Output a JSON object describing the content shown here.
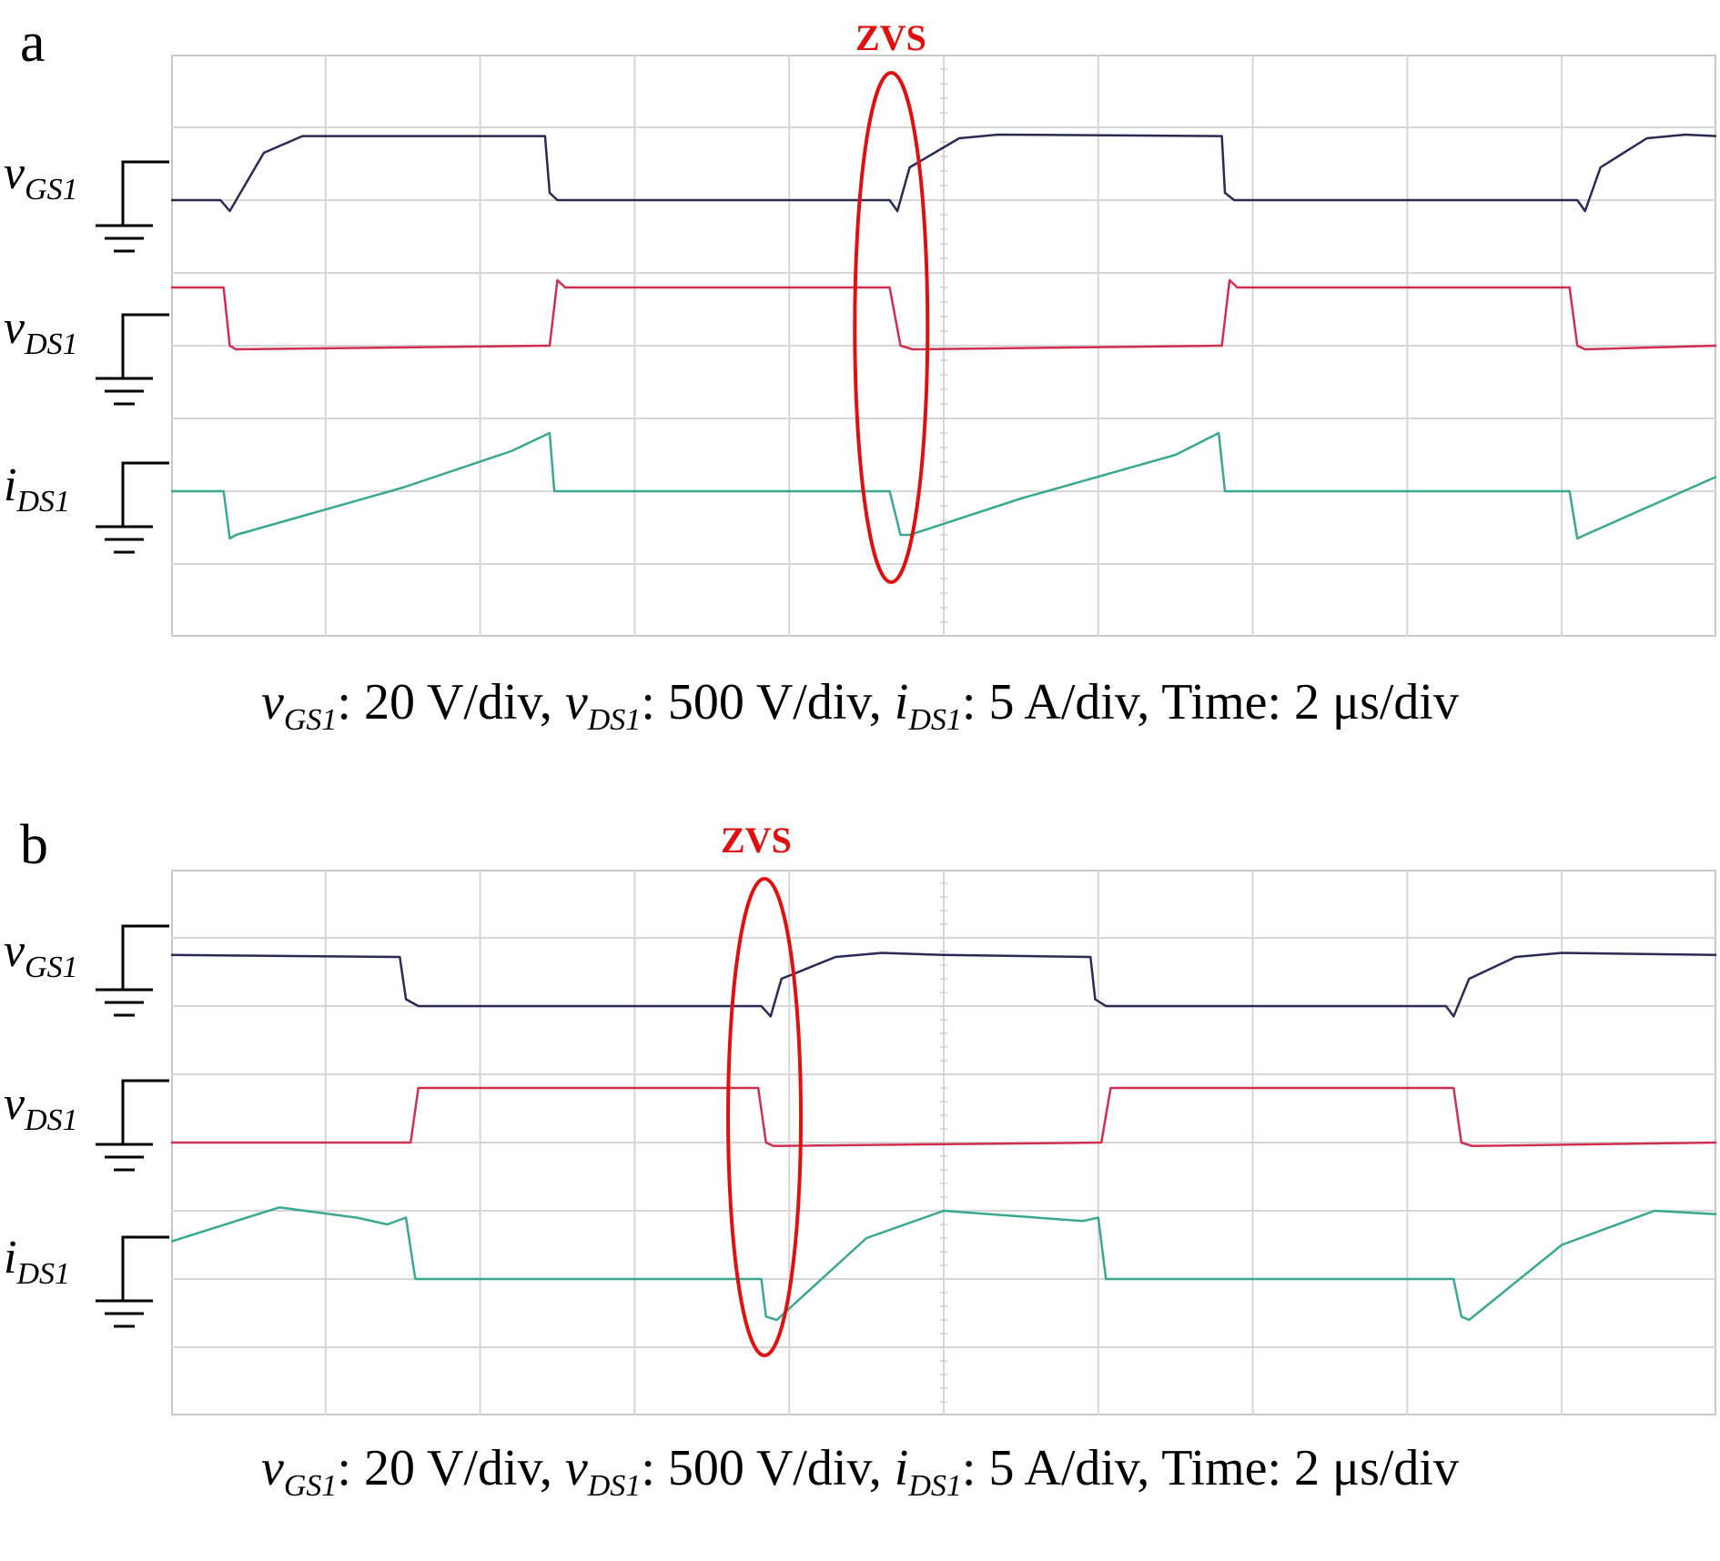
{
  "chart_data": [
    {
      "panel_label": "a",
      "type": "line",
      "annotation": "ZVS",
      "grid": true,
      "divisions": {
        "x": 10,
        "y": 8
      },
      "scales": {
        "vGS1": "20 V/div",
        "vDS1": "500 V/div",
        "iDS1": "5 A/div",
        "time": "2 μs/div"
      },
      "series": [
        {
          "name": "vGS1",
          "color": "#2a2a55",
          "zero_div": 6.0,
          "t": [
            0,
            0.32,
            0.38,
            0.6,
            0.85,
            2.42,
            2.45,
            2.5,
            4.65,
            4.7,
            4.78,
            5.1,
            5.35,
            6.8,
            6.82,
            6.88,
            9.1,
            9.15,
            9.25,
            9.55,
            9.8,
            10
          ],
          "v": [
            0,
            0,
            -0.15,
            0.65,
            0.88,
            0.88,
            0.1,
            0,
            0,
            -0.15,
            0.45,
            0.85,
            0.9,
            0.88,
            0.1,
            0,
            0,
            -0.15,
            0.45,
            0.85,
            0.9,
            0.88
          ]
        },
        {
          "name": "vDS1",
          "color": "#d03050",
          "zero_div": 4.0,
          "t": [
            0,
            0.34,
            0.38,
            0.42,
            2.45,
            2.5,
            2.55,
            4.65,
            4.72,
            4.8,
            6.8,
            6.85,
            6.9,
            9.05,
            9.1,
            9.15,
            10
          ],
          "v": [
            0.8,
            0.8,
            0,
            -0.05,
            0,
            0.9,
            0.8,
            0.8,
            0,
            -0.05,
            0,
            0.9,
            0.8,
            0.8,
            0,
            -0.05,
            0
          ]
        },
        {
          "name": "iDS1",
          "color": "#3aa890",
          "zero_div": 2.0,
          "t": [
            0,
            0.34,
            0.38,
            0.42,
            1.5,
            2.2,
            2.45,
            2.48,
            2.55,
            4.65,
            4.72,
            4.78,
            5.5,
            6.5,
            6.78,
            6.82,
            6.88,
            9.05,
            9.1,
            9.15,
            10
          ],
          "v": [
            0,
            0,
            -0.65,
            -0.6,
            0.05,
            0.55,
            0.8,
            0,
            0,
            0,
            -0.6,
            -0.6,
            -0.1,
            0.5,
            0.8,
            0,
            0,
            0,
            -0.65,
            -0.6,
            0.2
          ]
        }
      ]
    },
    {
      "panel_label": "b",
      "type": "line",
      "annotation": "ZVS",
      "grid": true,
      "divisions": {
        "x": 10,
        "y": 8
      },
      "scales": {
        "vGS1": "20 V/div",
        "vDS1": "500 V/div",
        "iDS1": "5 A/div",
        "time": "2 μs/div"
      },
      "series": [
        {
          "name": "vGS1",
          "color": "#2a2a55",
          "zero_div": 6.0,
          "t": [
            0,
            1.48,
            1.52,
            1.6,
            3.82,
            3.88,
            3.95,
            4.3,
            4.6,
            5.0,
            5.95,
            5.98,
            6.05,
            8.25,
            8.3,
            8.4,
            8.7,
            9.0,
            10
          ],
          "v": [
            0.75,
            0.72,
            0.1,
            0,
            0,
            -0.15,
            0.4,
            0.72,
            0.78,
            0.75,
            0.72,
            0.1,
            0,
            0,
            -0.15,
            0.4,
            0.72,
            0.78,
            0.75
          ]
        },
        {
          "name": "vDS1",
          "color": "#d03050",
          "zero_div": 4.0,
          "t": [
            0,
            1.55,
            1.6,
            1.65,
            3.8,
            3.85,
            3.9,
            6.02,
            6.08,
            6.13,
            8.3,
            8.35,
            8.42,
            10
          ],
          "v": [
            0,
            0,
            0.8,
            0.8,
            0.8,
            0,
            -0.05,
            0,
            0.8,
            0.8,
            0.8,
            0,
            -0.05,
            0
          ]
        },
        {
          "name": "iDS1",
          "color": "#3aa890",
          "zero_div": 2.0,
          "t": [
            0,
            0.7,
            1.2,
            1.4,
            1.52,
            1.58,
            3.82,
            3.85,
            3.92,
            4.5,
            5.0,
            5.9,
            6.0,
            6.05,
            8.3,
            8.35,
            8.4,
            9.0,
            9.6,
            10
          ],
          "v": [
            0.55,
            1.05,
            0.9,
            0.8,
            0.9,
            0,
            0,
            -0.55,
            -0.6,
            0.6,
            1.0,
            0.85,
            0.9,
            0,
            0,
            -0.55,
            -0.6,
            0.5,
            1.0,
            0.95
          ]
        }
      ]
    }
  ],
  "ground_labels": [
    {
      "main": "v",
      "sub": "GS1"
    },
    {
      "main": "v",
      "sub": "DS1"
    },
    {
      "main": "i",
      "sub": "DS1"
    }
  ],
  "caption": {
    "parts": [
      {
        "main": "v",
        "sub": "GS1",
        "text": ": 20 V/div, "
      },
      {
        "main": "v",
        "sub": "DS1",
        "text": ": 500 V/div, "
      },
      {
        "main": "i",
        "sub": "DS1",
        "text": ": 5 A/div, Time: 2 μs/div"
      }
    ]
  }
}
